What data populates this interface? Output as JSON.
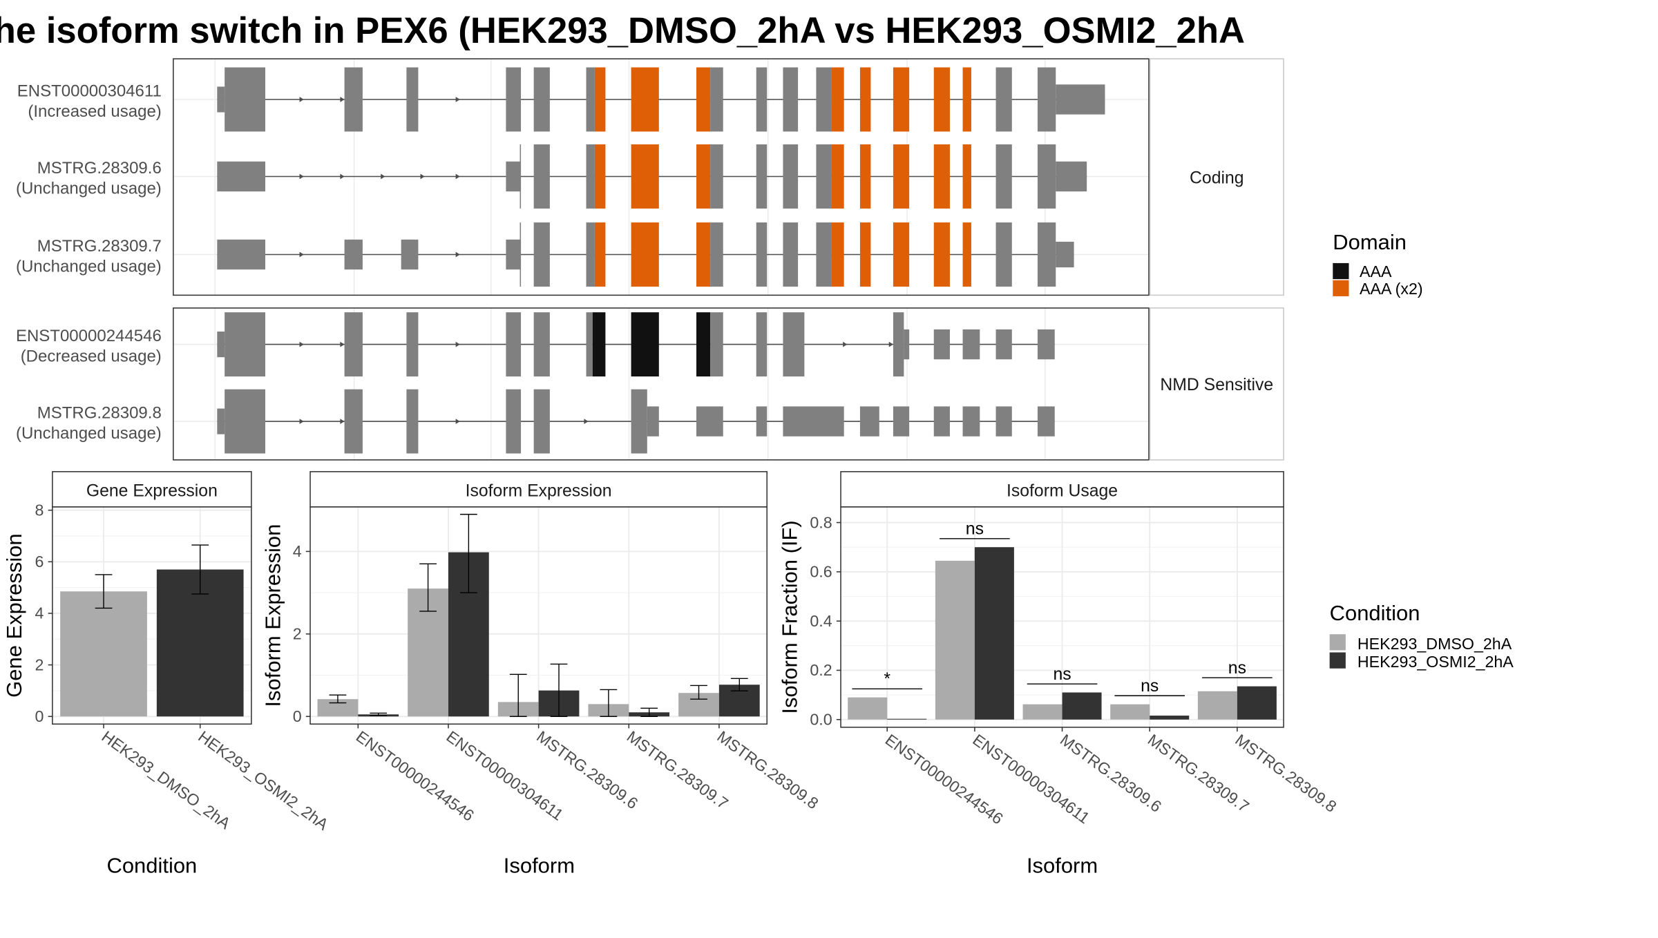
{
  "title": "he isoform switch in PEX6 (HEK293_DMSO_2hA vs HEK293_OSMI2_2hA",
  "colors": {
    "exon": "#808080",
    "aaa": "#111111",
    "aaa_x2": "#DF5F07",
    "dmso": "#ABABAB",
    "osmi2": "#333333",
    "grid": "#EBEBEB",
    "frame": "#333333"
  },
  "structure": {
    "groups": [
      {
        "strip": "Coding",
        "transcripts": [
          {
            "id": "ENST00000304611",
            "usage": "(Increased usage)",
            "model": "A",
            "domain": "aaa_x2"
          },
          {
            "id": "MSTRG.28309.6",
            "usage": "(Unchanged usage)",
            "model": "B",
            "domain": "aaa_x2"
          },
          {
            "id": "MSTRG.28309.7",
            "usage": "(Unchanged usage)",
            "model": "C",
            "domain": "aaa_x2"
          }
        ]
      },
      {
        "strip": "NMD Sensitive",
        "transcripts": [
          {
            "id": "ENST00000244546",
            "usage": "(Decreased usage)",
            "model": "D",
            "domain": "aaa"
          },
          {
            "id": "MSTRG.28309.8",
            "usage": "(Unchanged usage)",
            "model": "E",
            "domain": "none"
          }
        ]
      }
    ]
  },
  "legends": {
    "domain": {
      "title": "Domain",
      "entries": [
        {
          "label": "AAA",
          "color_key": "aaa"
        },
        {
          "label": "AAA (x2)",
          "color_key": "aaa_x2"
        }
      ]
    },
    "condition": {
      "title": "Condition",
      "entries": [
        {
          "label": "HEK293_DMSO_2hA",
          "color_key": "dmso"
        },
        {
          "label": "HEK293_OSMI2_2hA",
          "color_key": "osmi2"
        }
      ]
    }
  },
  "chart_data": [
    {
      "type": "bar",
      "title": "Gene Expression",
      "xlabel": "Condition",
      "ylabel": "Gene Expression",
      "ylim": [
        0,
        8
      ],
      "yticks": [
        "0",
        "2",
        "4",
        "6",
        "8"
      ],
      "categories": [
        "HEK293_DMSO_2hA",
        "HEK293_OSMI2_2hA"
      ],
      "values": [
        4.85,
        5.7
      ],
      "err_low": [
        4.2,
        4.75
      ],
      "err_high": [
        5.5,
        6.65
      ],
      "grid": true
    },
    {
      "type": "bar",
      "title": "Isoform Expression",
      "xlabel": "Isoform",
      "ylabel": "Isoform Expression",
      "ylim": [
        0,
        5
      ],
      "yticks": [
        "0",
        "2",
        "4"
      ],
      "categories": [
        "ENST00000244546",
        "ENST00000304611",
        "MSTRG.28309.6",
        "MSTRG.28309.7",
        "MSTRG.28309.8"
      ],
      "series": [
        {
          "name": "HEK293_DMSO_2hA",
          "values": [
            0.42,
            3.1,
            0.35,
            0.3,
            0.57
          ],
          "err_low": [
            0.33,
            2.55,
            0.0,
            0.0,
            0.42
          ],
          "err_high": [
            0.52,
            3.7,
            1.02,
            0.65,
            0.75
          ]
        },
        {
          "name": "HEK293_OSMI2_2hA",
          "values": [
            0.05,
            3.98,
            0.63,
            0.1,
            0.77
          ],
          "err_low": [
            0.02,
            3.0,
            0.0,
            0.0,
            0.62
          ],
          "err_high": [
            0.08,
            4.9,
            1.27,
            0.2,
            0.92
          ]
        }
      ],
      "grid": true
    },
    {
      "type": "bar",
      "title": "Isoform Usage",
      "xlabel": "Isoform",
      "ylabel": "Isoform Fraction (IF)",
      "ylim": [
        0,
        0.85
      ],
      "yticks": [
        "0.0",
        "0.2",
        "0.4",
        "0.6",
        "0.8"
      ],
      "categories": [
        "ENST00000244546",
        "ENST00000304611",
        "MSTRG.28309.6",
        "MSTRG.28309.7",
        "MSTRG.28309.8"
      ],
      "series": [
        {
          "name": "HEK293_DMSO_2hA",
          "values": [
            0.09,
            0.645,
            0.062,
            0.062,
            0.115
          ]
        },
        {
          "name": "HEK293_OSMI2_2hA",
          "values": [
            0.003,
            0.7,
            0.11,
            0.016,
            0.135
          ]
        }
      ],
      "significance": [
        "*",
        "ns",
        "ns",
        "ns",
        "ns"
      ],
      "grid": true
    }
  ]
}
